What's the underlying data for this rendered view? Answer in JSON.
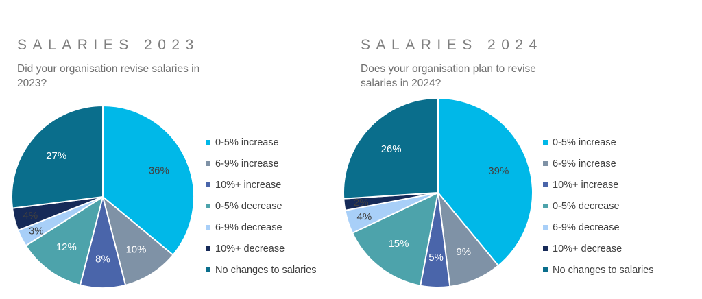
{
  "chart_data": [
    {
      "type": "pie",
      "title": "SALARIES 2023",
      "subtitle": "Did your organisation revise salaries in 2023?",
      "categories": [
        "0-5% increase",
        "6-9% increase",
        "10%+ increase",
        "0-5% decrease",
        "6-9% decrease",
        "10%+ decrease",
        "No changes to salaries"
      ],
      "values": [
        36,
        10,
        8,
        12,
        3,
        4,
        27
      ],
      "labels": [
        "36%",
        "10%",
        "8%",
        "12%",
        "3%",
        "4%",
        "27%"
      ],
      "colors": [
        "#00b8e8",
        "#7f92a6",
        "#4a65aa",
        "#4da3ab",
        "#a8cff8",
        "#162a58",
        "#0a6e8c"
      ],
      "legend_position": "right"
    },
    {
      "type": "pie",
      "title": "SALARIES 2024",
      "subtitle": "Does your organisation plan to revise salaries in 2024?",
      "categories": [
        "0-5% increase",
        "6-9% increase",
        "10%+ increase",
        "0-5% decrease",
        "6-9% decrease",
        "10%+ decrease",
        "No changes to salaries"
      ],
      "values": [
        39,
        9,
        5,
        15,
        4,
        2,
        26
      ],
      "labels": [
        "39%",
        "9%",
        "5%",
        "15%",
        "4%",
        "2%",
        "26%"
      ],
      "colors": [
        "#00b8e8",
        "#7f92a6",
        "#4a65aa",
        "#4da3ab",
        "#a8cff8",
        "#162a58",
        "#0a6e8c"
      ],
      "legend_position": "right"
    }
  ]
}
